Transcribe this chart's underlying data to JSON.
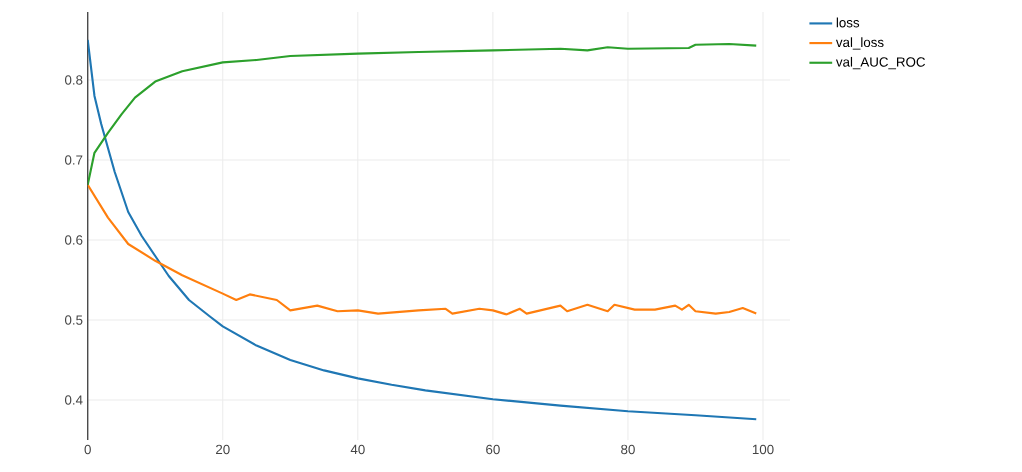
{
  "chart_data": {
    "type": "line",
    "xlim": [
      0,
      104
    ],
    "ylim": [
      0.35,
      0.885
    ],
    "xticks": [
      0,
      20,
      40,
      60,
      80,
      100
    ],
    "yticks": [
      0.4,
      0.5,
      0.6,
      0.7,
      0.8
    ],
    "grid": true,
    "legend": "top right",
    "series": [
      {
        "name": "loss",
        "color": "#1f77b4",
        "x": [
          0,
          1,
          2,
          3,
          4,
          5,
          6,
          8,
          10,
          12,
          15,
          18,
          20,
          25,
          30,
          35,
          40,
          45,
          50,
          60,
          70,
          80,
          90,
          99
        ],
        "values": [
          0.85,
          0.78,
          0.745,
          0.715,
          0.685,
          0.66,
          0.635,
          0.605,
          0.58,
          0.555,
          0.525,
          0.505,
          0.492,
          0.468,
          0.45,
          0.437,
          0.427,
          0.419,
          0.412,
          0.401,
          0.393,
          0.386,
          0.381,
          0.376
        ]
      },
      {
        "name": "val_loss",
        "color": "#ff7f0e",
        "x": [
          0,
          3,
          6,
          10,
          14,
          20,
          22,
          24,
          28,
          30,
          34,
          37,
          40,
          43,
          46,
          49,
          53,
          54,
          58,
          60,
          62,
          64,
          65,
          70,
          71,
          74,
          77,
          78,
          81,
          84,
          87,
          88,
          89,
          90,
          93,
          95,
          97,
          99
        ],
        "values": [
          0.669,
          0.628,
          0.595,
          0.574,
          0.556,
          0.533,
          0.525,
          0.532,
          0.525,
          0.512,
          0.518,
          0.511,
          0.512,
          0.508,
          0.51,
          0.512,
          0.514,
          0.508,
          0.514,
          0.512,
          0.507,
          0.514,
          0.508,
          0.518,
          0.511,
          0.519,
          0.511,
          0.519,
          0.513,
          0.513,
          0.518,
          0.513,
          0.519,
          0.511,
          0.508,
          0.51,
          0.515,
          0.508
        ]
      },
      {
        "name": "val_AUC_ROC",
        "color": "#2ca02c",
        "x": [
          0,
          1,
          3,
          5,
          7,
          10,
          14,
          20,
          25,
          30,
          40,
          49,
          60,
          70,
          74,
          77,
          80,
          89,
          90,
          95,
          99
        ],
        "values": [
          0.669,
          0.709,
          0.734,
          0.757,
          0.778,
          0.798,
          0.811,
          0.822,
          0.825,
          0.83,
          0.833,
          0.835,
          0.837,
          0.839,
          0.837,
          0.841,
          0.839,
          0.84,
          0.844,
          0.845,
          0.843
        ]
      }
    ]
  }
}
